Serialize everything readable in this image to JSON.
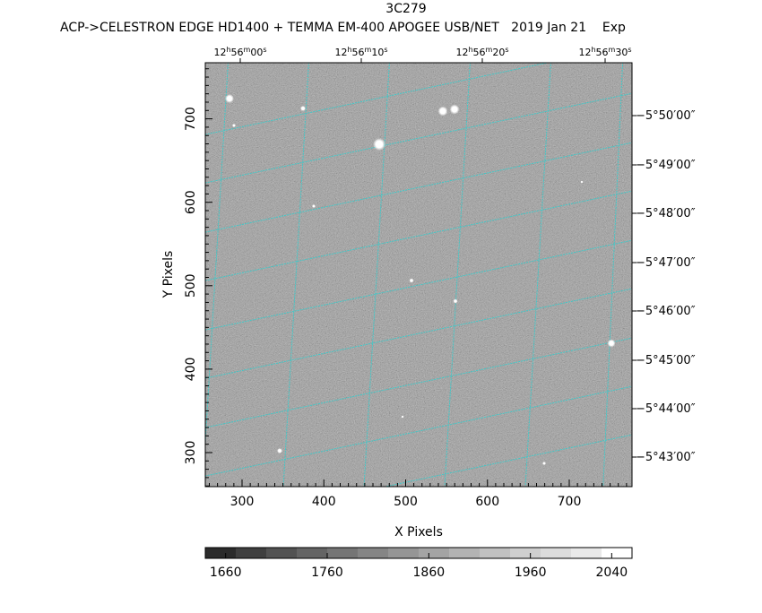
{
  "header": {
    "object": "3C279",
    "subtitle": "ACP->CELESTRON EDGE HD1400 + TEMMA EM-400 APOGEE USB/NET   2019 Jan 21    Exp"
  },
  "axes": {
    "xlabel": "X Pixels",
    "ylabel": "Y Pixels",
    "x_ticks": [
      "300",
      "400",
      "500",
      "600",
      "700"
    ],
    "y_ticks": [
      "300",
      "400",
      "500",
      "600",
      "700"
    ],
    "ra_ticks": [
      {
        "h": "12",
        "m": "56",
        "s": "00"
      },
      {
        "h": "12",
        "m": "56",
        "s": "10"
      },
      {
        "h": "12",
        "m": "56",
        "s": "20"
      },
      {
        "h": "12",
        "m": "56",
        "s": "30"
      }
    ],
    "dec_ticks": [
      "−5°50′00″",
      "−5°49′00″",
      "−5°48′00″",
      "−5°47′00″",
      "−5°46′00″",
      "−5°45′00″",
      "−5°44′00″",
      "−5°43′00″"
    ]
  },
  "colorbar": {
    "labels": [
      "1660",
      "1760",
      "1860",
      "1960",
      "2040"
    ],
    "levels": [
      "#2b2b2b",
      "#3f3f3f",
      "#525252",
      "#646464",
      "#757575",
      "#858585",
      "#959595",
      "#a4a4a4",
      "#b3b3b3",
      "#c1c1c1",
      "#cfcfcf",
      "#dcdcdc",
      "#e9e9e9",
      "#ffffff"
    ]
  },
  "colors": {
    "grid": "#40c8c8",
    "background": "#ffffff",
    "image_base": "#8a8a8a"
  }
}
